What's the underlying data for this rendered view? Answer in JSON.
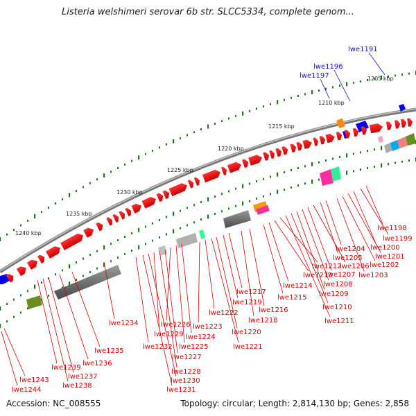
{
  "title": "Listeria welshimeri serovar 6b str. SLCC5334, complete genom...",
  "footer": {
    "accession": "Accession: NC_008555",
    "summary": "Topology: circular; Length: 2,814,130 bp; Genes: 2,858"
  },
  "scale_labels": [
    "1205 kbp",
    "1210 kbp",
    "1215 kbp",
    "1220 kbp",
    "1225 kbp",
    "1230 kbp",
    "1235 kbp",
    "1240 kbp"
  ],
  "blue_labels": [
    "lwe1191",
    "lwe1196",
    "lwe1197"
  ],
  "red_labels": [
    "lwe1198",
    "lwe1199",
    "lwe1200",
    "lwe1201",
    "lwe1202",
    "lwe1203",
    "lwe1204",
    "lwe1205",
    "lwe1206",
    "lwe1207",
    "lwe1208",
    "lwe1209",
    "lwe1210",
    "lwe1211",
    "lwe1212",
    "lwe1213",
    "lwe1214",
    "lwe1215",
    "lwe1216",
    "lwe1217",
    "lwe1218",
    "lwe1219",
    "lwe1220",
    "lwe1221",
    "lwe1222",
    "lwe1223",
    "lwe1224",
    "lwe1225",
    "lwe1226",
    "lwe1227",
    "lwe1228",
    "lwe1229",
    "lwe1230",
    "lwe1231",
    "lwe1232",
    "lwe1234",
    "lwe1235",
    "lwe1236",
    "lwe1237",
    "lwe1238",
    "lwe1239",
    "lwe1243",
    "lwe1244"
  ],
  "colors": {
    "forward_gene": "#ff0000",
    "reverse_gene_blue": "#0000ee",
    "backbone": "#8c8c8c",
    "label_red": "#d40000",
    "label_blue": "#1010c8",
    "tick": "#1a7a1a"
  }
}
